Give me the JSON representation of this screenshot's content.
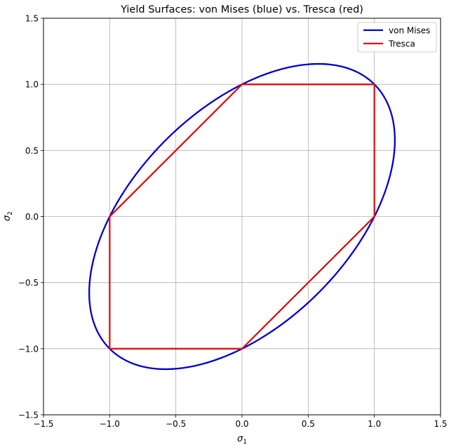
{
  "chart_data": {
    "type": "line",
    "title": "Yield Surfaces: von Mises (blue) vs. Tresca (red)",
    "xlabel": "σ1",
    "ylabel": "σ2",
    "xlim": [
      -1.5,
      1.5
    ],
    "ylim": [
      -1.5,
      1.5
    ],
    "xticks": [
      -1.5,
      -1.0,
      -0.5,
      0.0,
      0.5,
      1.0,
      1.5
    ],
    "yticks": [
      -1.5,
      -1.0,
      -0.5,
      0.0,
      0.5,
      1.0,
      1.5
    ],
    "xtick_labels": [
      "−1.5",
      "−1.0",
      "−0.5",
      "0.0",
      "0.5",
      "1.0",
      "1.5"
    ],
    "ytick_labels": [
      "−1.5",
      "−1.0",
      "−0.5",
      "0.0",
      "0.5",
      "1.0",
      "1.5"
    ],
    "grid": true,
    "aspect": "equal",
    "legend": {
      "position": "upper right",
      "entries": [
        "von Mises",
        "Tresca"
      ]
    },
    "series": [
      {
        "name": "von Mises",
        "color": "#0000cc",
        "equation": "σ1² − σ1·σ2 + σ2² = 1",
        "kind": "ellipse",
        "semi_major": 1.4142,
        "semi_minor": 0.8165,
        "rotation_deg": 45,
        "extremes": {
          "max_sigma2": 1.1547,
          "at_sigma1": 0.5774,
          "max_sigma1": 1.1547,
          "at_sigma2": 0.5774
        }
      },
      {
        "name": "Tresca",
        "color": "#dd1111",
        "kind": "polygon",
        "x": [
          1,
          1,
          0,
          -1,
          -1,
          0,
          1
        ],
        "y": [
          0,
          1,
          1,
          0,
          -1,
          -1,
          0
        ]
      }
    ]
  },
  "plot": {
    "title": "Yield Surfaces: von Mises (blue) vs. Tresca (red)",
    "xlabel_main": "σ",
    "xlabel_sub": "1",
    "ylabel_main": "σ",
    "ylabel_sub": "2",
    "legend": [
      {
        "label": "von Mises",
        "color": "#0000cc"
      },
      {
        "label": "Tresca",
        "color": "#dd1111"
      }
    ]
  }
}
